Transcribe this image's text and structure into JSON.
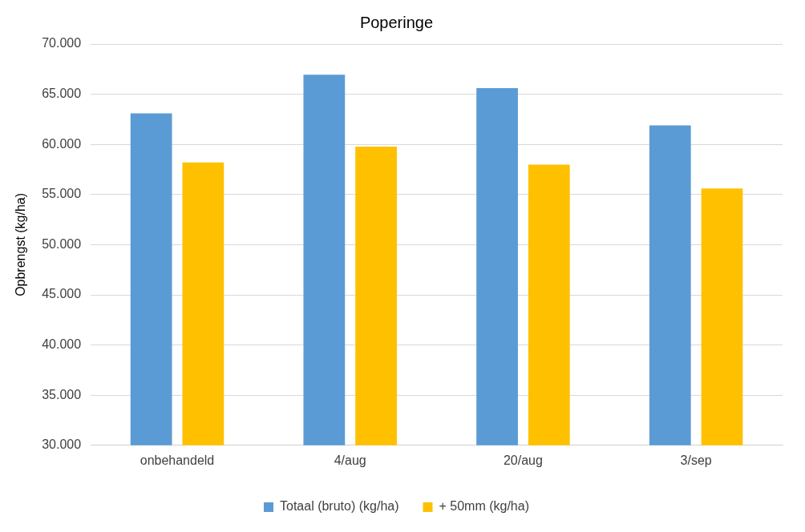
{
  "chart_data": {
    "type": "bar",
    "title": "Poperinge",
    "ylabel": "Opbrengst (kg/ha)",
    "categories": [
      "onbehandeld",
      "4/aug",
      "20/aug",
      "3/sep"
    ],
    "series": [
      {
        "name": "Totaal (bruto) (kg/ha)",
        "color": "#5b9bd5",
        "values": [
          63100,
          66950,
          65600,
          61900
        ]
      },
      {
        "name": "+ 50mm (kg/ha)",
        "color": "#ffc000",
        "values": [
          58200,
          59770,
          57970,
          55600
        ]
      }
    ],
    "ylim": [
      30000,
      70000
    ],
    "yticks": [
      {
        "value": 30000,
        "label": "30.000"
      },
      {
        "value": 35000,
        "label": "35.000"
      },
      {
        "value": 40000,
        "label": "40.000"
      },
      {
        "value": 45000,
        "label": "45.000"
      },
      {
        "value": 50000,
        "label": "50.000"
      },
      {
        "value": 55000,
        "label": "55.000"
      },
      {
        "value": 60000,
        "label": "60.000"
      },
      {
        "value": 65000,
        "label": "65.000"
      },
      {
        "value": 70000,
        "label": "70.000"
      }
    ],
    "grid": "y",
    "legend": "bottom"
  }
}
